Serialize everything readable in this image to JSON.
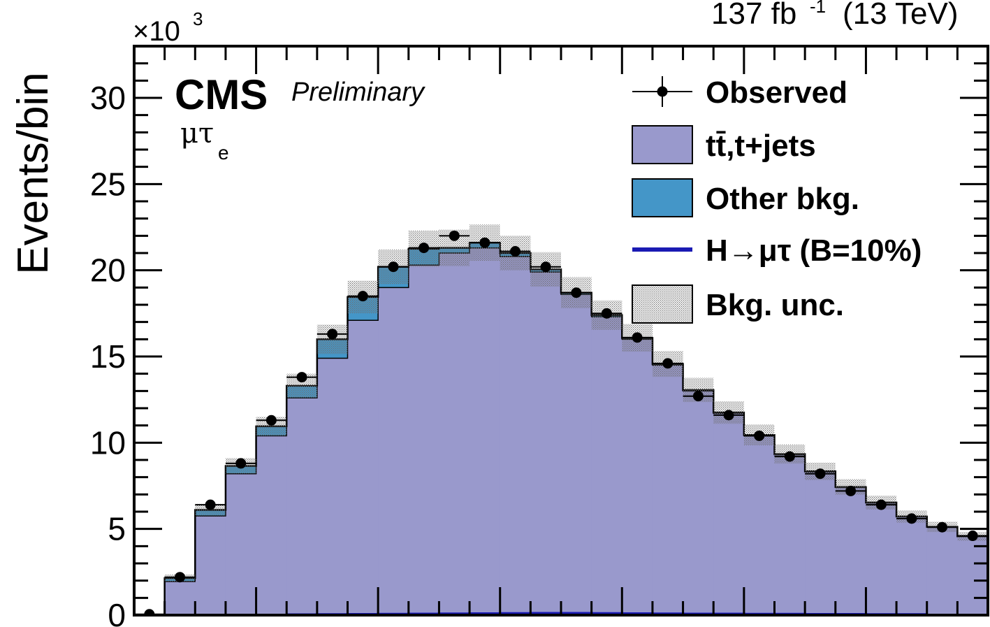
{
  "chart_data": {
    "type": "bar",
    "style": "stacked-histogram",
    "lumi_label": "137 fb",
    "lumi_exp": "-1",
    "lumi_energy": "(13 TeV)",
    "experiment": "CMS",
    "status": "Preliminary",
    "channel": "μτ",
    "channel_sub": "e",
    "ylabel": "Events/bin",
    "y_multiplier": "×10",
    "y_multiplier_exp": "3",
    "ylim": [
      0,
      33
    ],
    "y_ticks": [
      0,
      5,
      10,
      15,
      20,
      25,
      30
    ],
    "xlabel": "",
    "x_tick_labels_shown": false,
    "n_bins": 28,
    "bin_index": [
      0,
      1,
      2,
      3,
      4,
      5,
      6,
      7,
      8,
      9,
      10,
      11,
      12,
      13,
      14,
      15,
      16,
      17,
      18,
      19,
      20,
      21,
      22,
      23,
      24,
      25,
      26,
      27
    ],
    "observed": [
      0.05,
      2.2,
      6.4,
      8.8,
      11.3,
      13.8,
      16.3,
      18.5,
      20.2,
      21.3,
      22.0,
      21.6,
      21.1,
      20.2,
      18.7,
      17.5,
      16.1,
      14.6,
      12.7,
      11.6,
      10.4,
      9.2,
      8.2,
      7.2,
      6.4,
      5.6,
      5.1,
      4.6
    ],
    "ttbar": [
      0.0,
      1.95,
      5.75,
      8.2,
      10.4,
      12.6,
      14.9,
      17.1,
      19.0,
      20.3,
      21.0,
      21.3,
      20.8,
      19.9,
      18.6,
      17.3,
      16.0,
      14.5,
      13.0,
      11.7,
      10.4,
      9.3,
      8.3,
      7.4,
      6.5,
      5.7,
      5.1,
      4.55
    ],
    "other_bkg": [
      0.0,
      0.2,
      0.35,
      0.45,
      0.55,
      0.7,
      1.1,
      1.35,
      1.2,
      0.95,
      0.3,
      0.3,
      0.2,
      0.15,
      0.1,
      0.1,
      0.08,
      0.07,
      0.06,
      0.05,
      0.05,
      0.04,
      0.04,
      0.03,
      0.03,
      0.02,
      0.02,
      0.02
    ],
    "signal": [
      0,
      0,
      0,
      0,
      0,
      0.02,
      0.03,
      0.04,
      0.05,
      0.06,
      0.07,
      0.08,
      0.09,
      0.1,
      0.1,
      0.09,
      0.08,
      0.07,
      0.06,
      0.06,
      0.05,
      0.05,
      0.04,
      0.04,
      0.03,
      0.03,
      0,
      0
    ],
    "bkg_unc": [
      0.05,
      0.2,
      0.35,
      0.45,
      0.55,
      0.7,
      0.85,
      0.95,
      1.0,
      1.05,
      1.05,
      1.05,
      1.0,
      1.0,
      0.9,
      0.85,
      0.8,
      0.75,
      0.7,
      0.65,
      0.6,
      0.55,
      0.5,
      0.45,
      0.4,
      0.35,
      0.3,
      0.25
    ],
    "series": [
      {
        "name": "Observed",
        "key": "observed",
        "style": "points-with-errorbars",
        "color": "#000000"
      },
      {
        "name": "tt̄,t+jets",
        "key": "ttbar",
        "style": "stacked-fill",
        "color": "#9999cc"
      },
      {
        "name": "Other bkg.",
        "key": "other_bkg",
        "style": "stacked-fill",
        "color": "#4496c8"
      },
      {
        "name": "H→μτ (B=10%)",
        "key": "signal",
        "style": "line",
        "color": "#1a1ab3"
      },
      {
        "name": "Bkg. unc.",
        "key": "bkg_unc",
        "style": "hatched-band",
        "color": "#888888"
      }
    ],
    "legend_position": "top-right",
    "grid": false
  }
}
